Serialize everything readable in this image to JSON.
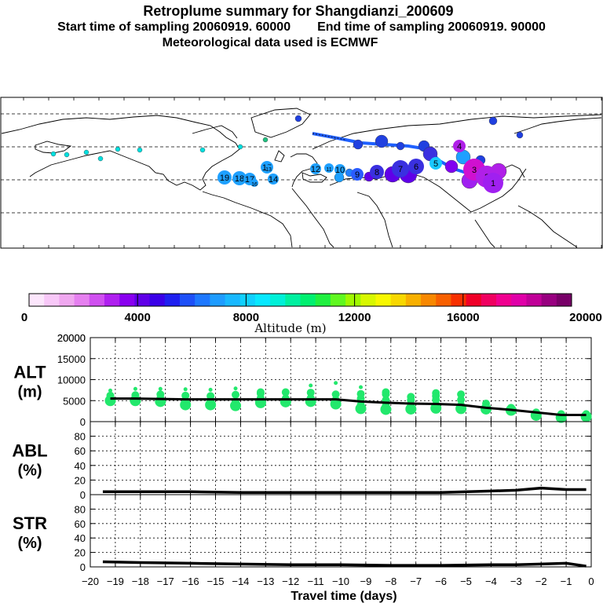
{
  "header": {
    "title": "Retroplume summary for Shangdianzi_200609",
    "start_label": "Start time of sampling 20060919. 60000",
    "end_label": "End time of sampling 20060919. 90000",
    "met_label": "Meteorological data used is ECMWF"
  },
  "map": {
    "plume_markers": [
      {
        "label": "19",
        "color": "#1ea0ff"
      },
      {
        "label": "18",
        "color": "#1ea0ff"
      },
      {
        "label": "17",
        "color": "#1ea0ff"
      },
      {
        "label": "16",
        "color": "#1ea0ff"
      },
      {
        "label": "15",
        "color": "#1ea0ff"
      },
      {
        "label": "14",
        "color": "#1ea0ff"
      },
      {
        "label": "13",
        "color": "#1ea0ff"
      },
      {
        "label": "12",
        "color": "#1ea0ff"
      },
      {
        "label": "11",
        "color": "#1ea0ff"
      },
      {
        "label": "10",
        "color": "#1ea0ff"
      },
      {
        "label": "9",
        "color": "#2a5cff"
      },
      {
        "label": "8",
        "color": "#3a30e0"
      },
      {
        "label": "7",
        "color": "#3a30e0"
      },
      {
        "label": "6",
        "color": "#3a30e0"
      },
      {
        "label": "5",
        "color": "#18c8ff"
      },
      {
        "label": "4",
        "color": "#b020e8"
      },
      {
        "label": "3",
        "color": "#d010d0"
      },
      {
        "label": "2",
        "color": "#b020e8"
      },
      {
        "label": "1",
        "color": "#a020f0"
      }
    ]
  },
  "colorbar": {
    "colors": [
      "#fce6fc",
      "#f8c8f8",
      "#f0a8f0",
      "#e680f0",
      "#d050f0",
      "#b020f0",
      "#8a00f0",
      "#6000e8",
      "#3a00e8",
      "#1f20f0",
      "#1e50f8",
      "#1e78ff",
      "#1e9cff",
      "#18b8ff",
      "#10d0ff",
      "#08e8ff",
      "#00f0d8",
      "#00f0a0",
      "#00f070",
      "#20f040",
      "#60f820",
      "#a0f800",
      "#d8f800",
      "#f8f800",
      "#f8d800",
      "#f8b000",
      "#f88800",
      "#f86000",
      "#f83000",
      "#f00028",
      "#f00060",
      "#f00090",
      "#e000a8",
      "#c00098",
      "#980080",
      "#780068"
    ],
    "tick_labels": [
      "0",
      "4000",
      "8000",
      "12000",
      "16000",
      "20000"
    ],
    "axis_title": "Altitude (m)"
  },
  "chart_data": [
    {
      "type": "line",
      "panel": "ALT",
      "ylabel_line1": "ALT",
      "ylabel_line2": "(m)",
      "ylim": [
        0,
        20000
      ],
      "yticks": [
        "0",
        "5000",
        "10000",
        "15000",
        "20000"
      ],
      "x": [
        -19.2,
        -18.2,
        -17.2,
        -16.2,
        -15.2,
        -14.2,
        -13.2,
        -12.2,
        -11.2,
        -10.2,
        -9.2,
        -8.2,
        -7.2,
        -6.2,
        -5.2,
        -4.2,
        -3.2,
        -2.2,
        -1.2,
        -0.2
      ],
      "values": [
        5500,
        5500,
        5400,
        5300,
        5300,
        5300,
        5300,
        5300,
        5300,
        5300,
        4800,
        4500,
        4300,
        4200,
        4000,
        3300,
        2800,
        2200,
        1600,
        1600
      ],
      "scatter": [
        {
          "x": -19.2,
          "y": [
            5000,
            5600,
            6200,
            7400
          ]
        },
        {
          "x": -18.2,
          "y": [
            5000,
            5600,
            6300,
            7800
          ]
        },
        {
          "x": -17.2,
          "y": [
            4800,
            5600,
            6500,
            7800
          ]
        },
        {
          "x": -16.2,
          "y": [
            4000,
            4900,
            6200,
            7700
          ]
        },
        {
          "x": -15.2,
          "y": [
            4000,
            4800,
            6100,
            7600
          ]
        },
        {
          "x": -14.2,
          "y": [
            3800,
            4700,
            6400,
            7900
          ]
        },
        {
          "x": -13.2,
          "y": [
            4500,
            5600,
            6700,
            7000
          ]
        },
        {
          "x": -12.2,
          "y": [
            4700,
            5500,
            7000
          ]
        },
        {
          "x": -11.2,
          "y": [
            4800,
            5600,
            6900,
            8600
          ]
        },
        {
          "x": -10.2,
          "y": [
            4200,
            5200,
            6500,
            9200
          ]
        },
        {
          "x": -9.2,
          "y": [
            3100,
            4000,
            5500,
            6600,
            8200
          ]
        },
        {
          "x": -8.2,
          "y": [
            2900,
            3800,
            5100,
            6500,
            7000
          ]
        },
        {
          "x": -7.2,
          "y": [
            3000,
            3900,
            5100,
            5900
          ]
        },
        {
          "x": -6.2,
          "y": [
            3200,
            4000,
            5200,
            6100,
            6800
          ]
        },
        {
          "x": -5.2,
          "y": [
            3100,
            3900,
            5200,
            6500
          ]
        },
        {
          "x": -4.2,
          "y": [
            3000,
            3700,
            4300
          ]
        },
        {
          "x": -3.2,
          "y": [
            2700,
            3300
          ]
        },
        {
          "x": -2.2,
          "y": [
            1500,
            2200
          ]
        },
        {
          "x": -1.2,
          "y": [
            1000,
            1800
          ]
        },
        {
          "x": -0.2,
          "y": [
            1200,
            1800
          ]
        }
      ]
    },
    {
      "type": "line",
      "panel": "ABL",
      "ylabel_line1": "ABL",
      "ylabel_line2": "(%)",
      "ylim": [
        0,
        100
      ],
      "yticks": [
        "0",
        "20",
        "40",
        "60",
        "80"
      ],
      "x": [
        -19.5,
        -18,
        -16,
        -14,
        -12,
        -10,
        -8,
        -6,
        -4,
        -3,
        -2,
        -1,
        -0.2
      ],
      "values": [
        4,
        4,
        4,
        3,
        3,
        3,
        3,
        3,
        5,
        6,
        9,
        7,
        7
      ]
    },
    {
      "type": "line",
      "panel": "STR",
      "ylabel_line1": "STR",
      "ylabel_line2": "(%)",
      "ylim": [
        0,
        100
      ],
      "yticks": [
        "0",
        "20",
        "40",
        "60",
        "80"
      ],
      "x": [
        -19.5,
        -18,
        -16,
        -14,
        -12,
        -10,
        -8,
        -6,
        -4,
        -3,
        -2,
        -1,
        -0.2
      ],
      "values": [
        7,
        6,
        5,
        4,
        3,
        3,
        2,
        2,
        3,
        3,
        4,
        5,
        1
      ]
    }
  ],
  "x_axis": {
    "xlim": [
      -20,
      0
    ],
    "tick_labels": [
      "-20",
      "-19",
      "-18",
      "-17",
      "-16",
      "-15",
      "-14",
      "-13",
      "-12",
      "-11",
      "-10",
      "-9",
      "-8",
      "-7",
      "-6",
      "-5",
      "-4",
      "-3",
      "-2",
      "-1",
      "0"
    ],
    "title": "Travel time (days)"
  }
}
